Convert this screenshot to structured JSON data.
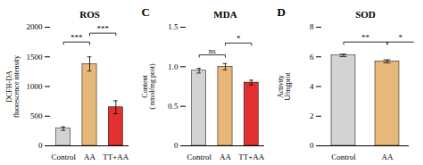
{
  "chart_data": [
    {
      "type": "bar",
      "title": "ROS",
      "categories": [
        "Control",
        "AA",
        "TT+AA"
      ],
      "values": [
        290,
        1380,
        650
      ],
      "errors": [
        30,
        120,
        110
      ],
      "colors": [
        "#d3d3d3",
        "#e8b87a",
        "#e03030"
      ],
      "ylabel": "DCFH-DA\nfluorescence intensity",
      "ylim": [
        0,
        2000
      ],
      "yticks": [
        0,
        500,
        1000,
        1500,
        2000
      ],
      "significance": [
        {
          "from": "Control",
          "to": "AA",
          "y": 1750,
          "label": "***"
        },
        {
          "from": "AA",
          "to": "TT+AA",
          "y": 1900,
          "label": "***"
        }
      ]
    },
    {
      "type": "bar",
      "title": "MDA",
      "panel_label": "C",
      "categories": [
        "Control",
        "AA",
        "TT+AA"
      ],
      "values": [
        0.95,
        1.0,
        0.8
      ],
      "errors": [
        0.03,
        0.04,
        0.03
      ],
      "colors": [
        "#d3d3d3",
        "#e8b87a",
        "#e03030"
      ],
      "ylabel": "Content\n( nmol/mg prot)",
      "ylim": [
        0.0,
        1.5
      ],
      "yticks": [
        0.0,
        {
          "value": 0.5,
          "label": "0.5"
        },
        {
          "value": 1.0,
          "label": "1.0"
        },
        1.5
      ],
      "significance": [
        {
          "from": "Control",
          "to": "AA",
          "y": 1.15,
          "label": "ns"
        },
        {
          "from": "AA",
          "to": "TT+AA",
          "y": 1.3,
          "label": "*"
        }
      ]
    },
    {
      "type": "bar",
      "title": "SOD",
      "panel_label": "D",
      "categories": [
        "Control",
        "AA"
      ],
      "values": [
        6.1,
        5.7
      ],
      "errors": [
        0.08,
        0.1
      ],
      "colors": [
        "#d3d3d3",
        "#e8b87a"
      ],
      "ylabel": "Activity\nU/mgprot",
      "ylim": [
        0,
        8
      ],
      "yticks": [
        0,
        2,
        4,
        6,
        8
      ],
      "significance": [
        {
          "from": "Control",
          "to": "AA",
          "y": 7.0,
          "label": "**"
        },
        {
          "from": "AA",
          "to": null,
          "y": 7.0,
          "label": "*"
        }
      ]
    }
  ]
}
